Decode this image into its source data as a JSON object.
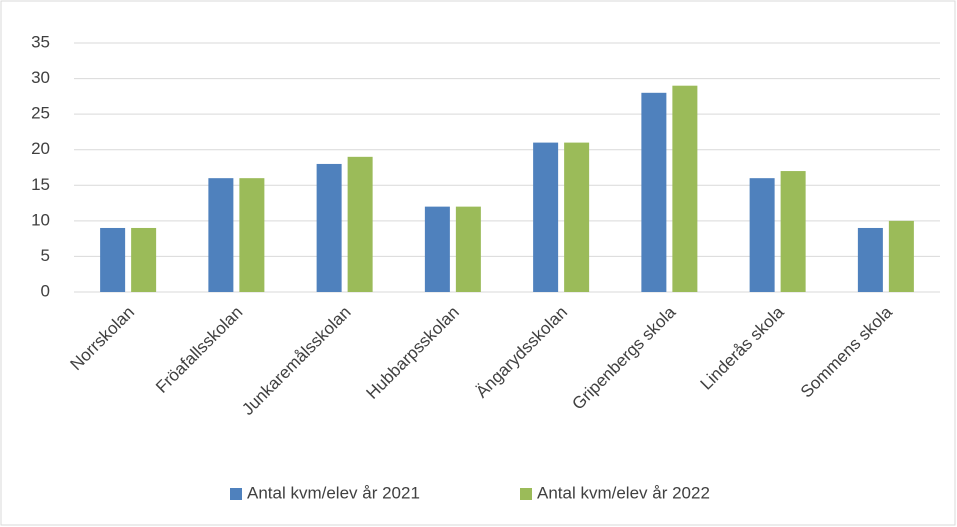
{
  "chart_data": {
    "type": "bar",
    "categories": [
      "Norrskolan",
      "Fröafallsskolan",
      "Junkaremålsskolan",
      "Hubbarpsskolan",
      "Ängarydsskolan",
      "Gripenbergs skola",
      "Linderås skola",
      "Sommens skola"
    ],
    "series": [
      {
        "name": "Antal kvm/elev år 2021",
        "color": "#4f81bd",
        "values": [
          9,
          16,
          18,
          12,
          21,
          28,
          16,
          9
        ]
      },
      {
        "name": "Antal kvm/elev år 2022",
        "color": "#9bbb59",
        "values": [
          9,
          16,
          19,
          12,
          21,
          29,
          17,
          10
        ]
      }
    ],
    "ylim": [
      0,
      35
    ],
    "yticks": [
      0,
      5,
      10,
      15,
      20,
      25,
      30,
      35
    ],
    "grid": true,
    "legend": "bottom"
  }
}
